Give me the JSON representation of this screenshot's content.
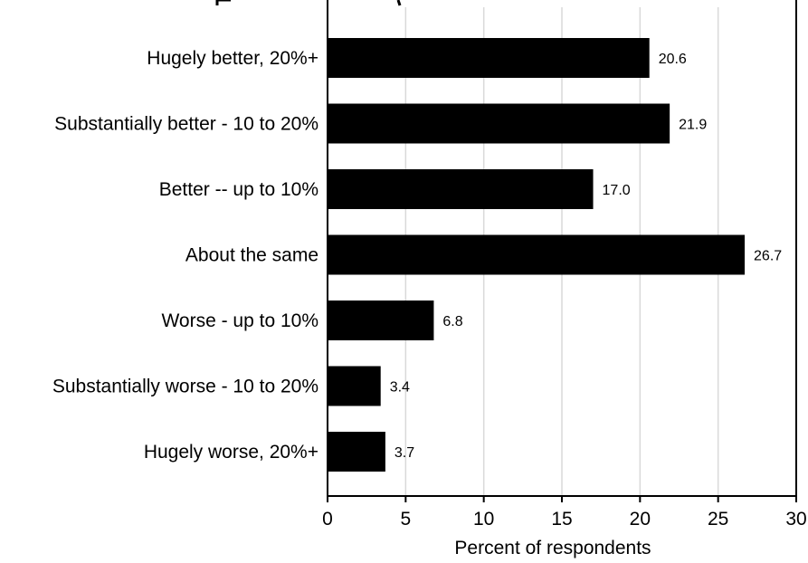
{
  "chart_data": {
    "type": "bar",
    "orientation": "horizontal",
    "title": "",
    "xlabel": "Percent of respondents",
    "ylabel": "",
    "categories": [
      "Hugely better, 20%+",
      "Substantially better - 10 to 20%",
      "Better -- up to 10%",
      "About the same",
      "Worse - up to 10%",
      "Substantially worse - 10 to 20%",
      "Hugely worse, 20%+"
    ],
    "values": [
      20.6,
      21.9,
      17.0,
      26.7,
      6.8,
      3.4,
      3.7
    ],
    "value_labels": [
      "20.6",
      "21.9",
      "17.0",
      "26.7",
      "6.8",
      "3.4",
      "3.7"
    ],
    "xlim": [
      0,
      30
    ],
    "xticks": [
      0,
      5,
      10,
      15,
      20,
      25,
      30
    ],
    "xtick_labels": [
      "0",
      "5",
      "10",
      "15",
      "20",
      "25",
      "30"
    ],
    "grid": "vertical",
    "legend": "none",
    "bar_color": "#000000",
    "grid_color": "#d9d9d9",
    "frame_color": "#000000"
  }
}
